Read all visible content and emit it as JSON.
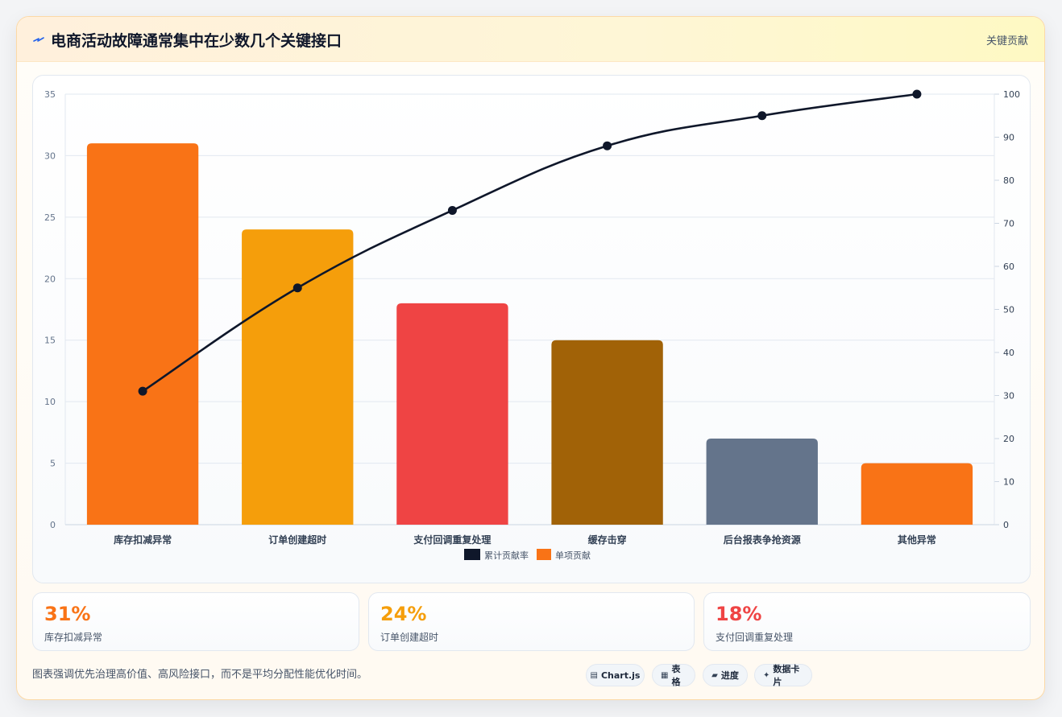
{
  "header": {
    "title": "电商活动故障通常集中在少数几个关键接口",
    "tag": "关键贡献"
  },
  "chart_data": {
    "type": "bar",
    "categories": [
      "库存扣减异常",
      "订单创建超时",
      "支付回调重复处理",
      "缓存击穿",
      "后台报表争抢资源",
      "其他异常"
    ],
    "series": [
      {
        "name": "单项贡献",
        "type": "bar",
        "axis": "left",
        "values": [
          31,
          24,
          18,
          15,
          7,
          5
        ],
        "colors": [
          "#f97316",
          "#f59e0b",
          "#ef4444",
          "#a16207",
          "#64748b",
          "#f97316"
        ]
      },
      {
        "name": "累计贡献率",
        "type": "line",
        "axis": "right",
        "values": [
          31,
          55,
          73,
          88,
          95,
          100
        ],
        "color": "#0f172a"
      }
    ],
    "ylim": [
      0,
      35
    ],
    "y_ticks": [
      0,
      5,
      10,
      15,
      20,
      25,
      30,
      35
    ],
    "y2lim": [
      0,
      100
    ],
    "y2_ticks": [
      0,
      10,
      20,
      30,
      40,
      50,
      60,
      70,
      80,
      90,
      100
    ],
    "grid": true,
    "legend_position": "bottom",
    "legend_order": [
      "累计贡献率",
      "单项贡献"
    ]
  },
  "stats": [
    {
      "value": "31%",
      "label": "库存扣减异常",
      "color": "#f97316"
    },
    {
      "value": "24%",
      "label": "订单创建超时",
      "color": "#f59e0b"
    },
    {
      "value": "18%",
      "label": "支付回调重复处理",
      "color": "#ef4444"
    }
  ],
  "footer": {
    "note": "图表强调优先治理高价值、高风险接口，而不是平均分配性能优化时间。",
    "chips": [
      {
        "icon": "chart-icon",
        "label": "Chart.js"
      },
      {
        "icon": "table-icon",
        "label": "表格"
      },
      {
        "icon": "progress-icon",
        "label": "进度"
      },
      {
        "icon": "sparkle-icon",
        "label": "数据卡片"
      }
    ]
  }
}
